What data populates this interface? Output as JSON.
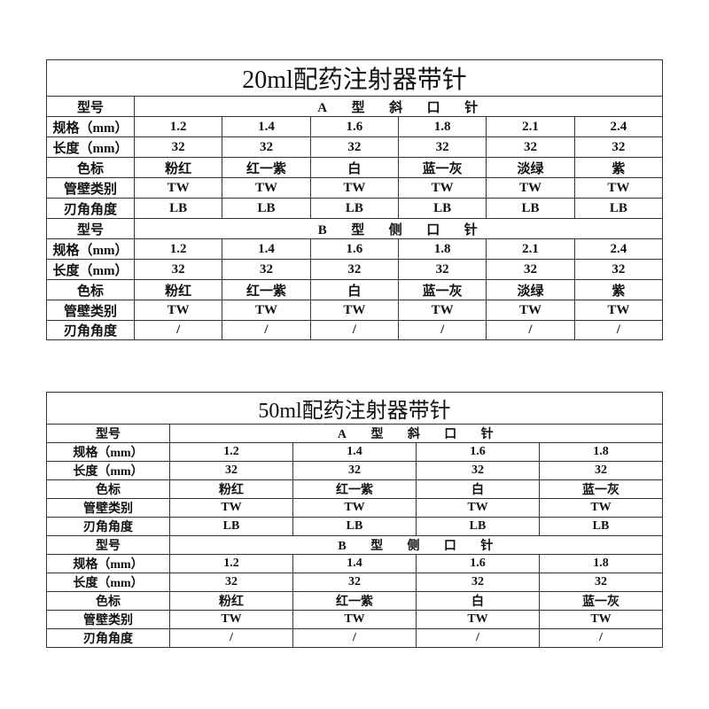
{
  "tables": [
    {
      "title": "20ml配药注射器带针",
      "sections": [
        {
          "type_label": "型号",
          "type_value": [
            "A",
            "型",
            "斜",
            "口",
            "针"
          ],
          "rows": [
            {
              "label": "规格（mm）",
              "values": [
                "1.2",
                "1.4",
                "1.6",
                "1.8",
                "2.1",
                "2.4"
              ]
            },
            {
              "label": "长度（mm）",
              "values": [
                "32",
                "32",
                "32",
                "32",
                "32",
                "32"
              ]
            },
            {
              "label": "色标",
              "values": [
                "粉红",
                "红一紫",
                "白",
                "蓝一灰",
                "淡绿",
                "紫"
              ]
            },
            {
              "label": "管壁类别",
              "values": [
                "TW",
                "TW",
                "TW",
                "TW",
                "TW",
                "TW"
              ]
            },
            {
              "label": "刃角角度",
              "values": [
                "LB",
                "LB",
                "LB",
                "LB",
                "LB",
                "LB"
              ]
            }
          ]
        },
        {
          "type_label": "型号",
          "type_value": [
            "B",
            "型",
            "侧",
            "口",
            "针"
          ],
          "rows": [
            {
              "label": "规格（mm）",
              "values": [
                "1.2",
                "1.4",
                "1.6",
                "1.8",
                "2.1",
                "2.4"
              ]
            },
            {
              "label": "长度（mm）",
              "values": [
                "32",
                "32",
                "32",
                "32",
                "32",
                "32"
              ]
            },
            {
              "label": "色标",
              "values": [
                "粉红",
                "红一紫",
                "白",
                "蓝一灰",
                "淡绿",
                "紫"
              ]
            },
            {
              "label": "管壁类别",
              "values": [
                "TW",
                "TW",
                "TW",
                "TW",
                "TW",
                "TW"
              ]
            },
            {
              "label": "刃角角度",
              "values": [
                "/",
                "/",
                "/",
                "/",
                "/",
                "/"
              ]
            }
          ]
        }
      ]
    },
    {
      "title": "50ml配药注射器带针",
      "sections": [
        {
          "type_label": "型号",
          "type_value": [
            "A",
            "型",
            "斜",
            "口",
            "针"
          ],
          "rows": [
            {
              "label": "规格（mm）",
              "values": [
                "1.2",
                "1.4",
                "1.6",
                "1.8"
              ]
            },
            {
              "label": "长度（mm）",
              "values": [
                "32",
                "32",
                "32",
                "32"
              ]
            },
            {
              "label": "色标",
              "values": [
                "粉红",
                "红一紫",
                "白",
                "蓝一灰"
              ]
            },
            {
              "label": "管壁类别",
              "values": [
                "TW",
                "TW",
                "TW",
                "TW"
              ]
            },
            {
              "label": "刃角角度",
              "values": [
                "LB",
                "LB",
                "LB",
                "LB"
              ]
            }
          ]
        },
        {
          "type_label": "型号",
          "type_value": [
            "B",
            "型",
            "侧",
            "口",
            "针"
          ],
          "rows": [
            {
              "label": "规格（mm）",
              "values": [
                "1.2",
                "1.4",
                "1.6",
                "1.8"
              ]
            },
            {
              "label": "长度（mm）",
              "values": [
                "32",
                "32",
                "32",
                "32"
              ]
            },
            {
              "label": "色标",
              "values": [
                "粉红",
                "红一紫",
                "白",
                "蓝一灰"
              ]
            },
            {
              "label": "管壁类别",
              "values": [
                "TW",
                "TW",
                "TW",
                "TW"
              ]
            },
            {
              "label": "刃角角度",
              "values": [
                "/",
                "/",
                "/",
                "/"
              ]
            }
          ]
        }
      ]
    }
  ]
}
